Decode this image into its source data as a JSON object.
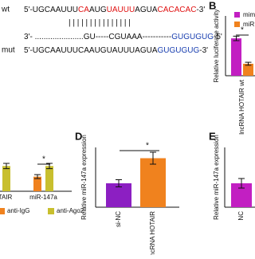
{
  "sequence": {
    "wt_label": "wt",
    "wt": [
      {
        "text": "5'-UGCAAUUU",
        "color": "#111111"
      },
      {
        "text": "CA",
        "color": "#e01010"
      },
      {
        "text": "AUG",
        "color": "#111111"
      },
      {
        "text": "UAUUU",
        "color": "#e01010"
      },
      {
        "text": "AGUA",
        "color": "#111111"
      },
      {
        "text": "CACACAC",
        "color": "#e01010"
      },
      {
        "text": "-3'",
        "color": "#111111"
      }
    ],
    "pairs": "| |    | |  | | | |       | | | | | | |",
    "mir": [
      {
        "text": "3'- ......................GU-----CGUAAA-----------",
        "color": "#111111"
      },
      {
        "text": "GUGUGUG",
        "color": "#1a3fb0"
      },
      {
        "text": "-5'",
        "color": "#111111"
      }
    ],
    "mut_label": "mut",
    "mut": [
      {
        "text": "5'-UGCAAUUUCAAUGUAUUUAGUA",
        "color": "#111111"
      },
      {
        "text": "GUGUGUG",
        "color": "#1a3fb0"
      },
      {
        "text": "-3'",
        "color": "#111111"
      }
    ]
  },
  "panel_labels": [
    "B",
    "D",
    "E"
  ],
  "chart_data": [
    {
      "type": "bar",
      "ylabel": "Relative luciferase activity",
      "categories": [
        "lncRNA HOTAIR wt"
      ],
      "series": [
        {
          "name": "mimi",
          "color": "#c21fc2",
          "values": [
            1.0
          ]
        },
        {
          "name": "miR",
          "color": "#f0821e",
          "values": [
            0.32
          ]
        }
      ],
      "errors": [
        [
          0.06
        ],
        [
          0.04
        ]
      ],
      "ylim": [
        0,
        1.6
      ],
      "annotation": "*"
    },
    {
      "type": "bar",
      "categories": [
        "HOTAIR",
        "miR-147a"
      ],
      "series": [
        {
          "name": "anti-IgG",
          "color": "#f0821e",
          "values": [
            1.0,
            1.1
          ]
        },
        {
          "name": "anti-Ago2",
          "color": "#c8bf2e",
          "values": [
            1.9,
            1.9
          ]
        }
      ],
      "errors": [
        [
          0.15,
          0.15
        ],
        [
          0.2,
          0.2
        ]
      ],
      "ylim": [
        0,
        3
      ],
      "annotation": "*"
    },
    {
      "type": "bar",
      "ylabel": "Relative miR-147a expression",
      "categories": [
        "si-NC",
        "si-lncRNA HOTAIR"
      ],
      "series": [
        {
          "name": null,
          "colors": [
            "#8c1fc2",
            "#f0821e"
          ],
          "values": [
            1.0,
            2.05
          ]
        }
      ],
      "errors": [
        [
          0.15,
          0.25
        ]
      ],
      "ylim": [
        0,
        2.5
      ],
      "annotation": "*"
    },
    {
      "type": "bar",
      "ylabel": "Relative miR-147a expression",
      "categories": [
        "NC"
      ],
      "series": [
        {
          "name": null,
          "colors": [
            "#c21fc2"
          ],
          "values": [
            1.0
          ]
        }
      ],
      "errors": [
        [
          0.2
        ]
      ],
      "ylim": [
        0,
        2.5
      ]
    }
  ]
}
